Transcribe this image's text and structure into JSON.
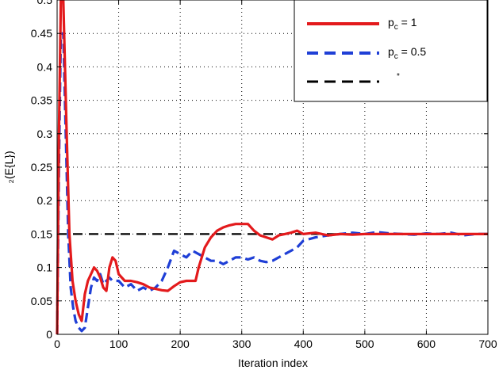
{
  "chart_data": {
    "type": "line",
    "xlabel": "Iteration index",
    "ylabel": "₂(E{L})",
    "xlim": [
      0,
      700
    ],
    "ylim": [
      0,
      0.5
    ],
    "xticks": [
      0,
      100,
      200,
      300,
      400,
      500,
      600,
      700
    ],
    "yticks": [
      0,
      0.05,
      0.1,
      0.15,
      0.2,
      0.25,
      0.3,
      0.35,
      0.4,
      0.45,
      0.5
    ],
    "grid": true,
    "legend_position": "top-right",
    "series": [
      {
        "name": "p_c = 1",
        "color": "#e31a1c",
        "style": "solid",
        "x": [
          0,
          3,
          6,
          10,
          15,
          20,
          25,
          30,
          35,
          40,
          45,
          50,
          55,
          60,
          65,
          70,
          75,
          80,
          85,
          90,
          95,
          100,
          110,
          120,
          130,
          140,
          150,
          160,
          170,
          180,
          190,
          200,
          210,
          220,
          225,
          230,
          240,
          250,
          260,
          270,
          280,
          290,
          300,
          310,
          320,
          330,
          340,
          350,
          360,
          370,
          380,
          390,
          400,
          420,
          440,
          460,
          480,
          500,
          550,
          600,
          650,
          700
        ],
        "y": [
          0.0,
          0.3,
          0.5,
          0.5,
          0.32,
          0.15,
          0.08,
          0.05,
          0.03,
          0.02,
          0.06,
          0.08,
          0.09,
          0.1,
          0.095,
          0.085,
          0.07,
          0.065,
          0.1,
          0.115,
          0.11,
          0.09,
          0.08,
          0.08,
          0.078,
          0.075,
          0.07,
          0.068,
          0.066,
          0.065,
          0.072,
          0.078,
          0.08,
          0.08,
          0.08,
          0.1,
          0.13,
          0.145,
          0.155,
          0.16,
          0.163,
          0.165,
          0.165,
          0.165,
          0.155,
          0.148,
          0.145,
          0.142,
          0.148,
          0.15,
          0.152,
          0.155,
          0.15,
          0.152,
          0.148,
          0.15,
          0.149,
          0.15,
          0.15,
          0.15,
          0.15,
          0.15
        ]
      },
      {
        "name": "p_c = 0.5",
        "color": "#1f3fd6",
        "style": "dashed",
        "x": [
          0,
          3,
          6,
          10,
          14,
          18,
          22,
          26,
          30,
          35,
          40,
          45,
          50,
          55,
          60,
          65,
          70,
          75,
          80,
          85,
          90,
          100,
          110,
          120,
          130,
          140,
          150,
          160,
          170,
          180,
          190,
          200,
          210,
          220,
          230,
          240,
          250,
          260,
          270,
          280,
          290,
          300,
          310,
          320,
          330,
          340,
          350,
          360,
          370,
          380,
          390,
          400,
          420,
          440,
          460,
          480,
          500,
          520,
          540,
          560,
          580,
          600,
          620,
          640,
          660,
          680,
          700
        ],
        "y": [
          0.0,
          0.25,
          0.45,
          0.45,
          0.3,
          0.15,
          0.07,
          0.04,
          0.02,
          0.01,
          0.005,
          0.01,
          0.04,
          0.07,
          0.085,
          0.08,
          0.09,
          0.075,
          0.08,
          0.085,
          0.08,
          0.08,
          0.07,
          0.075,
          0.065,
          0.07,
          0.065,
          0.07,
          0.08,
          0.1,
          0.125,
          0.12,
          0.115,
          0.125,
          0.12,
          0.115,
          0.11,
          0.11,
          0.105,
          0.11,
          0.115,
          0.115,
          0.112,
          0.115,
          0.11,
          0.108,
          0.11,
          0.115,
          0.12,
          0.125,
          0.13,
          0.14,
          0.145,
          0.148,
          0.15,
          0.152,
          0.15,
          0.153,
          0.151,
          0.15,
          0.149,
          0.151,
          0.15,
          0.152,
          0.148,
          0.15,
          0.15
        ]
      },
      {
        "name": "*",
        "color": "#000000",
        "style": "dashed",
        "x": [
          0,
          700
        ],
        "y": [
          0.15,
          0.15
        ]
      }
    ],
    "legend_labels": [
      "p",
      "c",
      " = 1",
      "p",
      "c",
      " = 0.5",
      "*"
    ]
  }
}
